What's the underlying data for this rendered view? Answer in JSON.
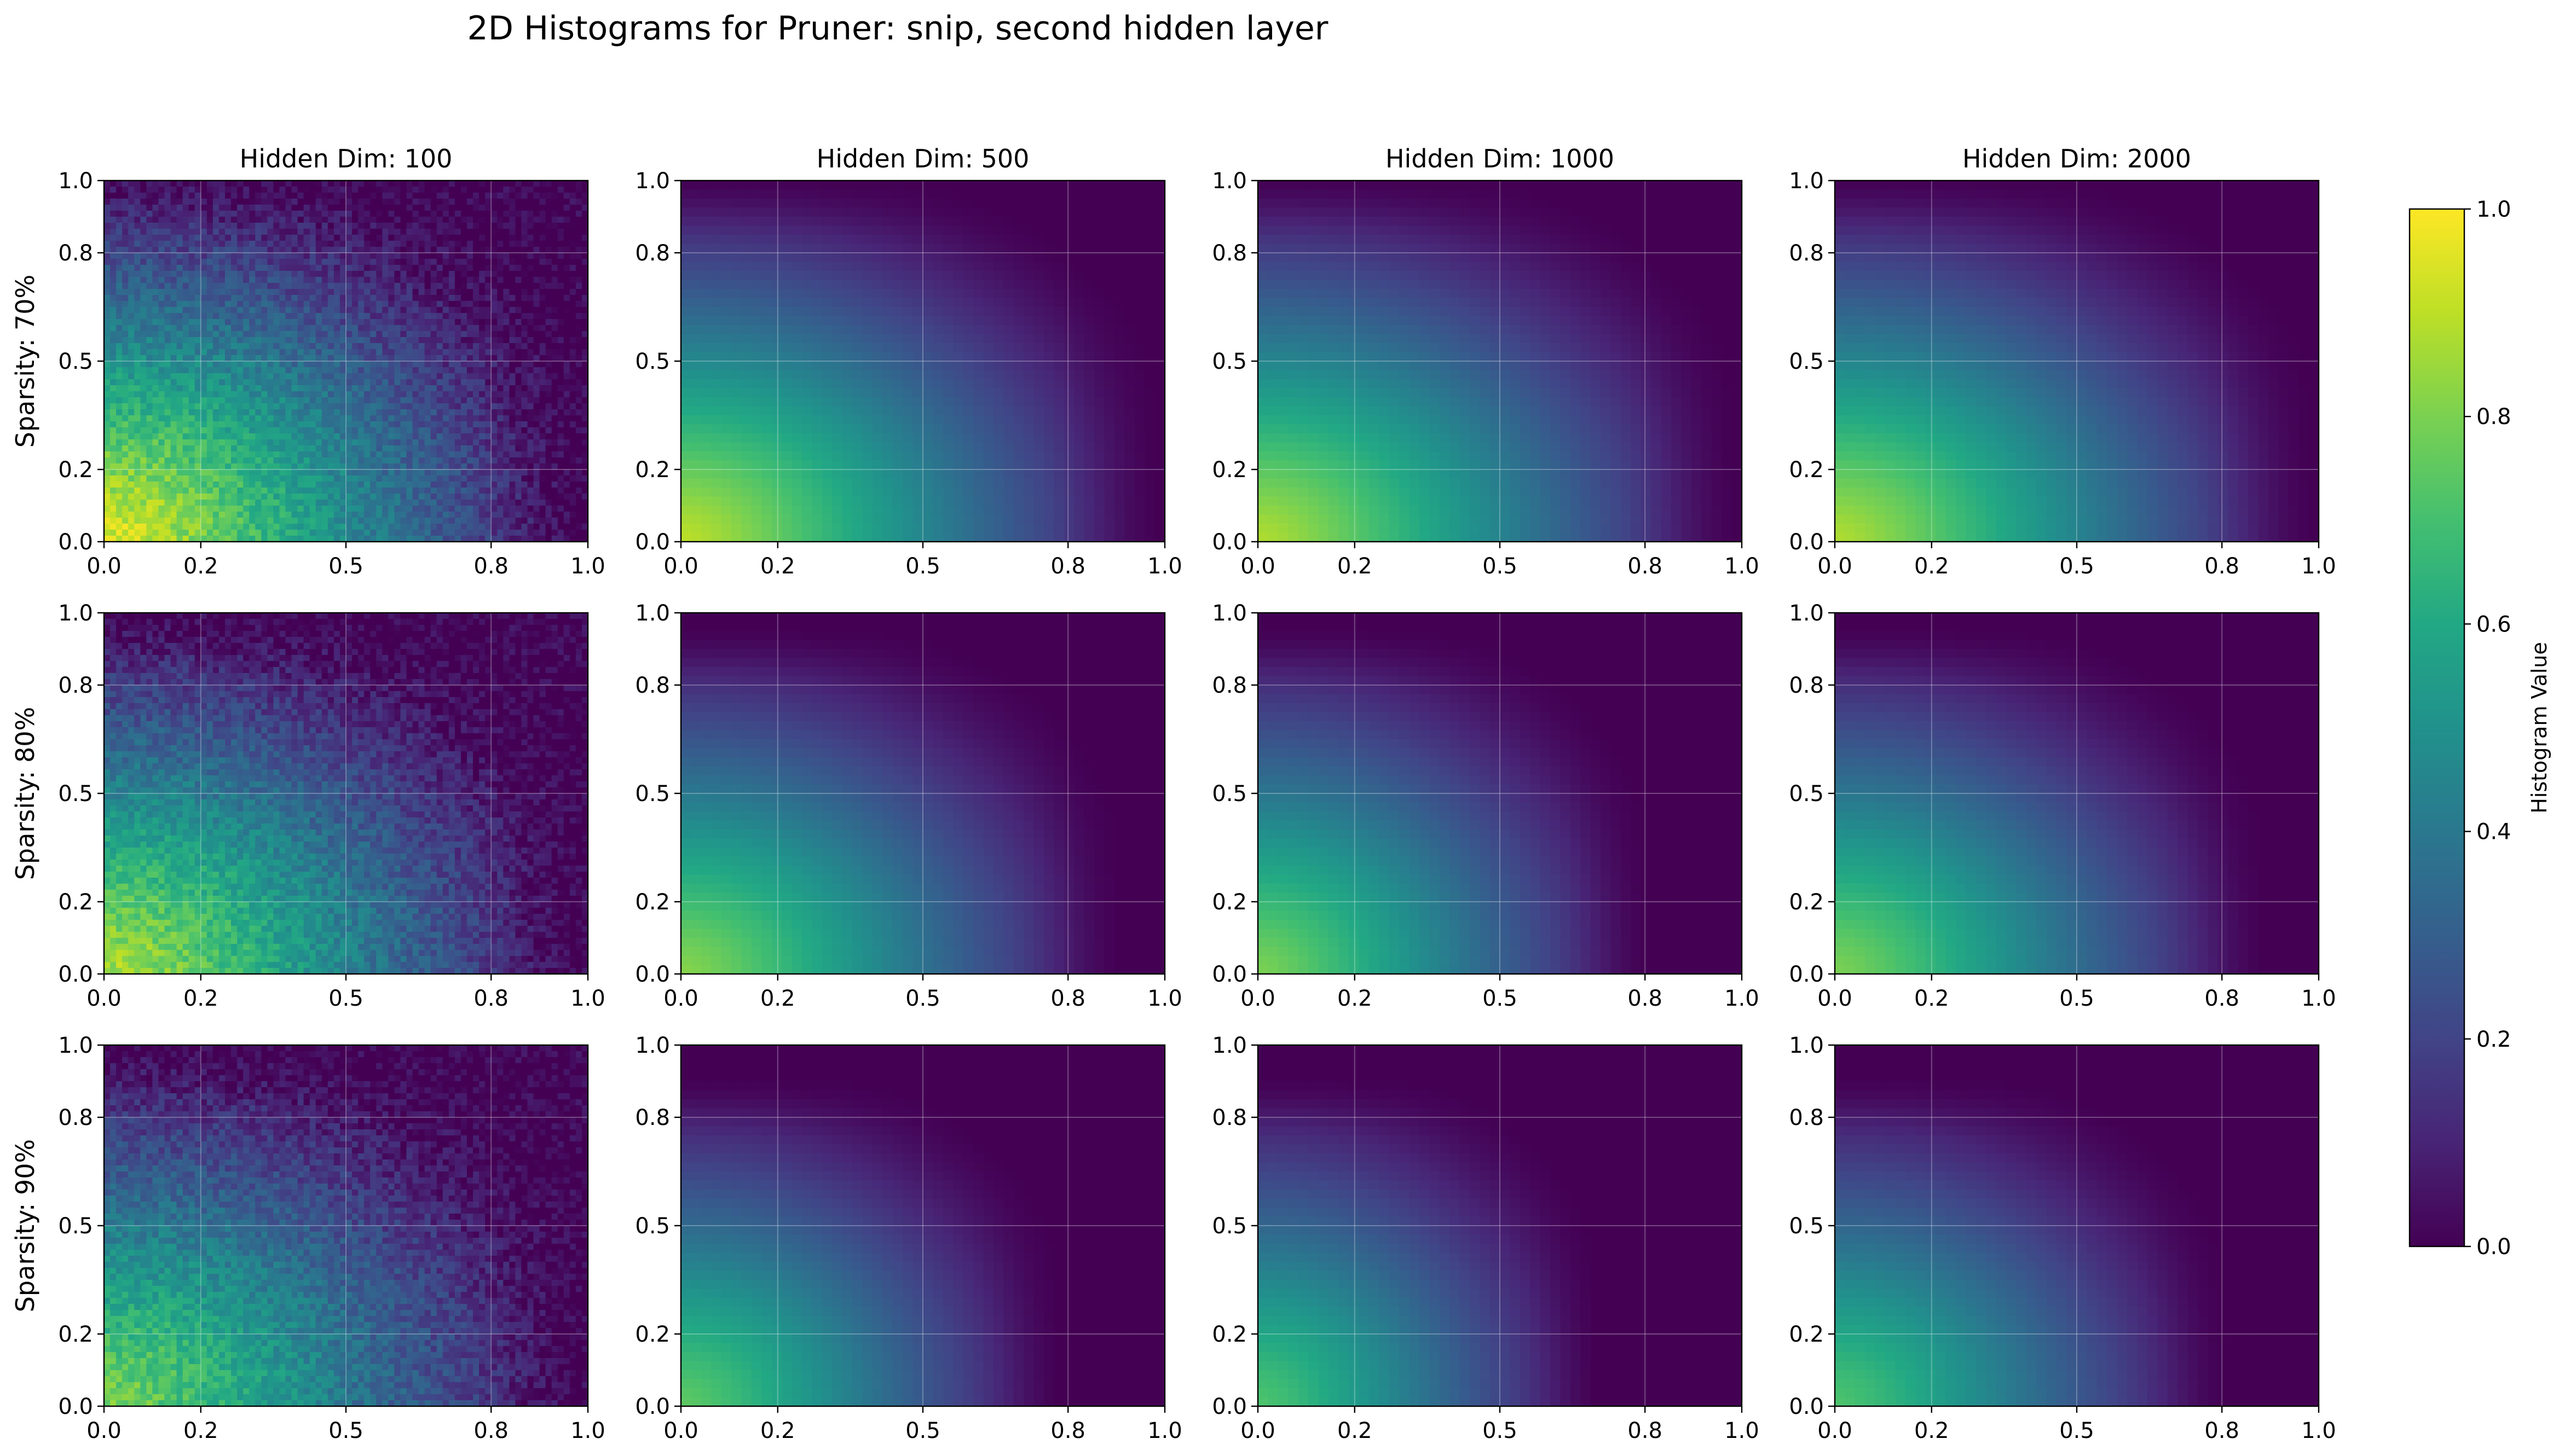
{
  "figure": {
    "title": "2D Histograms for Pruner: snip, second hidden layer"
  },
  "colorbar": {
    "label": "Histogram Value",
    "colormap": "viridis",
    "range": [
      0.0,
      1.0
    ],
    "ticks": [
      "0.0",
      "0.2",
      "0.4",
      "0.6",
      "0.8",
      "1.0"
    ]
  },
  "chart_data": {
    "type": "heatmap",
    "title": "2D Histograms for Pruner: snip, second hidden layer",
    "grid": true,
    "columns": [
      "Hidden Dim: 100",
      "Hidden Dim: 500",
      "Hidden Dim: 1000",
      "Hidden Dim: 2000"
    ],
    "rows": [
      "Sparsity: 70%",
      "Sparsity: 80%",
      "Sparsity: 90%"
    ],
    "xlim": [
      0.0,
      1.0
    ],
    "ylim": [
      0.0,
      1.0
    ],
    "x_ticks": [
      "0.0",
      "0.2",
      "0.5",
      "0.8",
      "1.0"
    ],
    "y_ticks": [
      "0.0",
      "0.2",
      "0.5",
      "0.8",
      "1.0"
    ],
    "legend_placement": "right (colorbar)",
    "panels": [
      {
        "row": "Sparsity: 70%",
        "column": "Hidden Dim: 100",
        "peak_value": 0.95,
        "peak_location": "bottom-left (x=0, y=0)",
        "extent_x": 0.98,
        "extent_y": 1.03,
        "noisy": true
      },
      {
        "row": "Sparsity: 70%",
        "column": "Hidden Dim: 500",
        "peak_value": 0.9,
        "peak_location": "bottom-left (x=0, y=0)",
        "extent_x": 0.98,
        "extent_y": 1.0,
        "noisy": false
      },
      {
        "row": "Sparsity: 70%",
        "column": "Hidden Dim: 1000",
        "peak_value": 0.88,
        "peak_location": "bottom-left (x=0, y=0)",
        "extent_x": 0.98,
        "extent_y": 1.0,
        "noisy": false
      },
      {
        "row": "Sparsity: 70%",
        "column": "Hidden Dim: 2000",
        "peak_value": 0.88,
        "peak_location": "bottom-left (x=0, y=0)",
        "extent_x": 0.98,
        "extent_y": 1.0,
        "noisy": false
      },
      {
        "row": "Sparsity: 80%",
        "column": "Hidden Dim: 100",
        "peak_value": 0.88,
        "peak_location": "bottom-left (x=0, y=0)",
        "extent_x": 0.98,
        "extent_y": 1.0,
        "noisy": true
      },
      {
        "row": "Sparsity: 80%",
        "column": "Hidden Dim: 500",
        "peak_value": 0.82,
        "peak_location": "bottom-left (x=0, y=0)",
        "extent_x": 0.9,
        "extent_y": 0.95,
        "noisy": false
      },
      {
        "row": "Sparsity: 80%",
        "column": "Hidden Dim: 1000",
        "peak_value": 0.8,
        "peak_location": "bottom-left (x=0, y=0)",
        "extent_x": 0.8,
        "extent_y": 0.95,
        "noisy": false
      },
      {
        "row": "Sparsity: 80%",
        "column": "Hidden Dim: 2000",
        "peak_value": 0.8,
        "peak_location": "bottom-left (x=0, y=0)",
        "extent_x": 0.88,
        "extent_y": 0.95,
        "noisy": false
      },
      {
        "row": "Sparsity: 90%",
        "column": "Hidden Dim: 100",
        "peak_value": 0.8,
        "peak_location": "bottom-left (x=0, y=0)",
        "extent_x": 0.98,
        "extent_y": 1.0,
        "noisy": true
      },
      {
        "row": "Sparsity: 90%",
        "column": "Hidden Dim: 500",
        "peak_value": 0.75,
        "peak_location": "bottom-left (x=0, y=0)",
        "extent_x": 0.78,
        "extent_y": 0.9,
        "noisy": false
      },
      {
        "row": "Sparsity: 90%",
        "column": "Hidden Dim: 1000",
        "peak_value": 0.72,
        "peak_location": "bottom-left (x=0, y=0)",
        "extent_x": 0.7,
        "extent_y": 0.9,
        "noisy": false
      },
      {
        "row": "Sparsity: 90%",
        "column": "Hidden Dim: 2000",
        "peak_value": 0.72,
        "peak_location": "bottom-left (x=0, y=0)",
        "extent_x": 0.8,
        "extent_y": 0.9,
        "noisy": false
      }
    ]
  }
}
